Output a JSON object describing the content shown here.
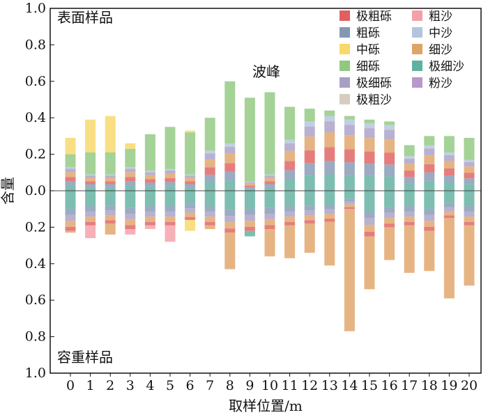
{
  "chart_data": {
    "type": "bar",
    "xlabel": "取样位置/m",
    "ylabel": "含量",
    "x": [
      0,
      1,
      2,
      3,
      4,
      5,
      6,
      7,
      8,
      9,
      10,
      11,
      12,
      13,
      14,
      15,
      16,
      17,
      18,
      19,
      20
    ],
    "y_ticks_labels": [
      "1.0",
      "0.8",
      "0.6",
      "0.4",
      "0.2",
      "0.0",
      "0.2",
      "0.4",
      "0.6",
      "0.8",
      "1.0"
    ],
    "ylim_top": [
      0,
      1.0
    ],
    "ylim_bottom": [
      0,
      1.0
    ],
    "panel_top_label": "表面样品",
    "panel_bottom_label": "容重样品",
    "annotation": "波峰",
    "grid": false,
    "legend_position": "top-right",
    "series": [
      {
        "name": "极粗砾",
        "color": "#e06060"
      },
      {
        "name": "粗沙",
        "color": "#f4a0a8"
      },
      {
        "name": "粗砾",
        "color": "#8498b4"
      },
      {
        "name": "中沙",
        "color": "#b4c4dc"
      },
      {
        "name": "中砾",
        "color": "#f8d868"
      },
      {
        "name": "细沙",
        "color": "#e0a468"
      },
      {
        "name": "细砾",
        "color": "#90c880"
      },
      {
        "name": "极细沙",
        "color": "#60b0a0"
      },
      {
        "name": "极细砾",
        "color": "#a8a0c4"
      },
      {
        "name": "粉沙",
        "color": "#b898cc"
      },
      {
        "name": "极粗沙",
        "color": "#d8ccc0"
      }
    ],
    "surface_totals": [
      0.29,
      0.39,
      0.41,
      0.26,
      0.31,
      0.35,
      0.33,
      0.4,
      0.6,
      0.51,
      0.54,
      0.46,
      0.45,
      0.44,
      0.41,
      0.39,
      0.38,
      0.25,
      0.3,
      0.3,
      0.29
    ],
    "surface_fine_gravel": [
      0.07,
      0.12,
      0.12,
      0.1,
      0.2,
      0.23,
      0.23,
      0.18,
      0.34,
      0.46,
      0.45,
      0.18,
      0.07,
      0.03,
      0.02,
      0.02,
      0.02,
      0.06,
      0.05,
      0.09,
      0.12
    ],
    "surface_medium_gravel": [
      0.09,
      0.18,
      0.2,
      0.03,
      0,
      0,
      0.01,
      0,
      0,
      0,
      0,
      0,
      0,
      0,
      0,
      0,
      0,
      0,
      0,
      0,
      0
    ],
    "bulk_totals": [
      0.23,
      0.26,
      0.24,
      0.24,
      0.21,
      0.28,
      0.22,
      0.21,
      0.43,
      0.25,
      0.36,
      0.37,
      0.34,
      0.41,
      0.77,
      0.54,
      0.38,
      0.45,
      0.44,
      0.59,
      0.52
    ],
    "bulk_fine_sand": [
      0.01,
      0.0,
      0.06,
      0.0,
      0.0,
      0.0,
      0.0,
      0.02,
      0.2,
      0.0,
      0.15,
      0.18,
      0.16,
      0.24,
      0.67,
      0.29,
      0.18,
      0.26,
      0.22,
      0.44,
      0.33
    ],
    "bulk_medium_gravel": [
      0,
      0,
      0,
      0,
      0,
      0,
      0.06,
      0,
      0,
      0,
      0,
      0,
      0,
      0,
      0,
      0,
      0,
      0,
      0,
      0,
      0
    ],
    "bulk_coarse_sand": [
      0,
      0.07,
      0,
      0.03,
      0.02,
      0.09,
      0,
      0,
      0,
      0,
      0,
      0,
      0,
      0,
      0,
      0,
      0,
      0,
      0,
      0,
      0
    ],
    "bulk_very_fine_sand": [
      0,
      0,
      0,
      0,
      0,
      0,
      0,
      0,
      0,
      0.03,
      0,
      0,
      0,
      0,
      0,
      0,
      0,
      0,
      0,
      0,
      0
    ]
  }
}
